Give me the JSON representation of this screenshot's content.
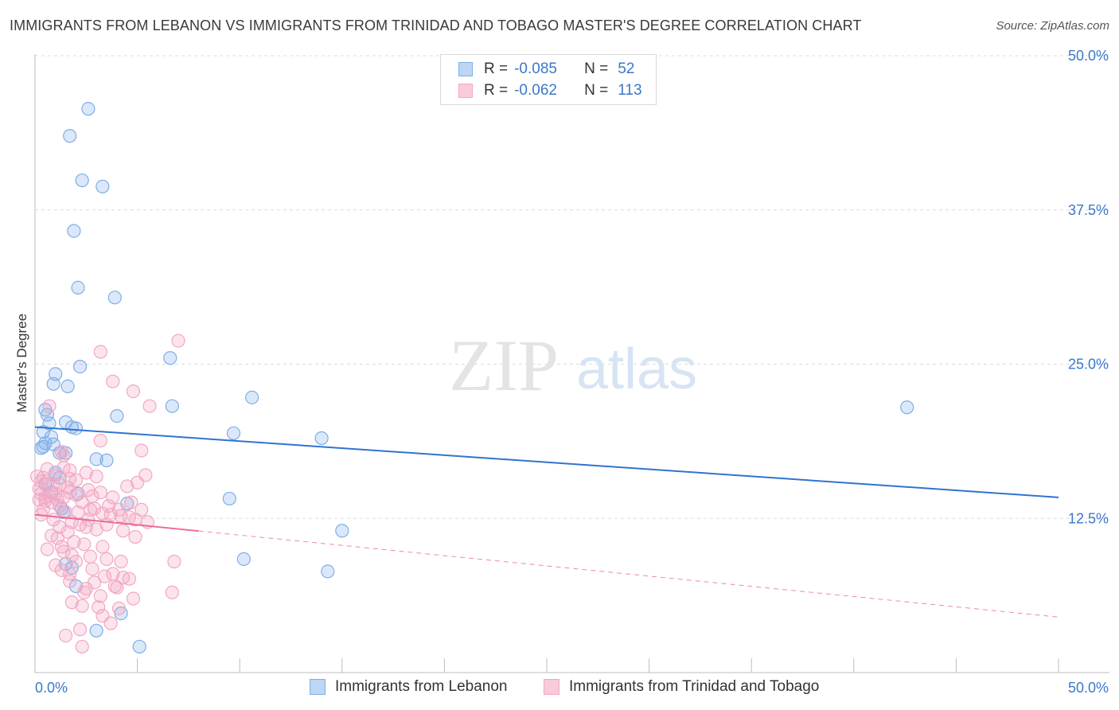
{
  "header": {
    "title": "IMMIGRANTS FROM LEBANON VS IMMIGRANTS FROM TRINIDAD AND TOBAGO MASTER'S DEGREE CORRELATION CHART",
    "source": "Source: ZipAtlas.com"
  },
  "watermark": {
    "zip": "ZIP",
    "atlas": "atlas"
  },
  "legend": {
    "rows": [
      {
        "r_label": "R =",
        "r_value": "-0.085",
        "n_label": "N =",
        "n_value": "52"
      },
      {
        "r_label": "R =",
        "r_value": "-0.062",
        "n_label": "N =",
        "n_value": "113"
      }
    ]
  },
  "chart_data": {
    "type": "scatter",
    "title": "IMMIGRANTS FROM LEBANON VS IMMIGRANTS FROM TRINIDAD AND TOBAGO MASTER'S DEGREE CORRELATION CHART",
    "xlabel": "",
    "ylabel": "Master's Degree",
    "xlim": [
      0,
      50
    ],
    "ylim": [
      0,
      50
    ],
    "x_tick_labels": [
      "0.0%",
      "50.0%"
    ],
    "y_ticks": [
      12.5,
      25.0,
      37.5,
      50.0
    ],
    "y_tick_labels": [
      "12.5%",
      "25.0%",
      "37.5%",
      "50.0%"
    ],
    "grid": true,
    "legend_position": "bottom",
    "series": [
      {
        "name": "Immigrants from Lebanon",
        "color": "#7eaee8",
        "line_color": "#2f74d0",
        "R": -0.085,
        "N": 52,
        "trend": {
          "x": [
            0,
            50
          ],
          "y": [
            19.9,
            14.2
          ],
          "dashed_from": null
        },
        "points": [
          [
            2.6,
            45.7
          ],
          [
            1.7,
            43.5
          ],
          [
            2.3,
            39.9
          ],
          [
            3.3,
            39.4
          ],
          [
            1.9,
            35.8
          ],
          [
            2.1,
            31.2
          ],
          [
            3.9,
            30.4
          ],
          [
            6.6,
            25.5
          ],
          [
            2.2,
            24.8
          ],
          [
            1.0,
            24.2
          ],
          [
            0.9,
            23.4
          ],
          [
            1.6,
            23.2
          ],
          [
            10.6,
            22.3
          ],
          [
            6.7,
            21.6
          ],
          [
            42.6,
            21.5
          ],
          [
            0.5,
            21.3
          ],
          [
            0.6,
            20.9
          ],
          [
            4.0,
            20.8
          ],
          [
            1.5,
            20.3
          ],
          [
            0.7,
            20.2
          ],
          [
            1.8,
            19.9
          ],
          [
            2.0,
            19.8
          ],
          [
            0.4,
            19.5
          ],
          [
            9.7,
            19.4
          ],
          [
            14.0,
            19.0
          ],
          [
            0.8,
            19.1
          ],
          [
            0.5,
            18.6
          ],
          [
            0.9,
            18.5
          ],
          [
            0.3,
            18.2
          ],
          [
            1.2,
            17.8
          ],
          [
            1.5,
            17.8
          ],
          [
            3.0,
            17.3
          ],
          [
            3.5,
            17.2
          ],
          [
            1.0,
            16.2
          ],
          [
            1.2,
            15.8
          ],
          [
            0.5,
            15.3
          ],
          [
            0.8,
            14.6
          ],
          [
            2.1,
            14.5
          ],
          [
            1.3,
            13.3
          ],
          [
            9.5,
            14.1
          ],
          [
            4.5,
            13.7
          ],
          [
            15.0,
            11.5
          ],
          [
            10.2,
            9.2
          ],
          [
            14.3,
            8.2
          ],
          [
            1.5,
            8.8
          ],
          [
            1.8,
            8.5
          ],
          [
            2.0,
            7.0
          ],
          [
            4.2,
            4.8
          ],
          [
            3.0,
            3.4
          ],
          [
            5.1,
            2.1
          ],
          [
            0.4,
            18.3
          ],
          [
            1.4,
            13.0
          ]
        ]
      },
      {
        "name": "Immigrants from Trinidad and Tobago",
        "color": "#f3a7c2",
        "line_color": "#ec6a96",
        "R": -0.062,
        "N": 113,
        "trend": {
          "x": [
            0,
            50
          ],
          "y": [
            12.8,
            4.5
          ],
          "dashed_from": 8.0
        },
        "points": [
          [
            7.0,
            26.9
          ],
          [
            3.2,
            26.0
          ],
          [
            3.8,
            23.6
          ],
          [
            4.8,
            22.8
          ],
          [
            5.6,
            21.6
          ],
          [
            0.7,
            21.6
          ],
          [
            3.2,
            18.8
          ],
          [
            5.2,
            18.0
          ],
          [
            1.3,
            17.9
          ],
          [
            1.4,
            17.6
          ],
          [
            1.4,
            16.6
          ],
          [
            1.7,
            16.4
          ],
          [
            2.5,
            16.2
          ],
          [
            0.1,
            15.9
          ],
          [
            0.3,
            15.5
          ],
          [
            0.6,
            15.3
          ],
          [
            0.9,
            15.2
          ],
          [
            1.2,
            15.2
          ],
          [
            1.7,
            15.7
          ],
          [
            5.4,
            16.0
          ],
          [
            3.0,
            15.9
          ],
          [
            0.2,
            14.9
          ],
          [
            0.3,
            14.5
          ],
          [
            0.7,
            14.3
          ],
          [
            1.0,
            14.5
          ],
          [
            1.4,
            14.2
          ],
          [
            1.7,
            14.6
          ],
          [
            2.0,
            14.4
          ],
          [
            2.3,
            13.8
          ],
          [
            2.8,
            14.3
          ],
          [
            0.8,
            13.8
          ],
          [
            1.2,
            13.5
          ],
          [
            0.5,
            13.9
          ],
          [
            2.7,
            13.2
          ],
          [
            3.3,
            12.9
          ],
          [
            3.7,
            12.8
          ],
          [
            4.2,
            12.7
          ],
          [
            4.6,
            12.6
          ],
          [
            4.9,
            12.4
          ],
          [
            1.8,
            12.2
          ],
          [
            2.2,
            12.0
          ],
          [
            2.5,
            11.8
          ],
          [
            3.0,
            11.6
          ],
          [
            1.6,
            11.4
          ],
          [
            0.8,
            11.1
          ],
          [
            1.1,
            10.9
          ],
          [
            1.9,
            10.6
          ],
          [
            2.4,
            10.4
          ],
          [
            3.3,
            10.2
          ],
          [
            0.6,
            10.0
          ],
          [
            1.4,
            9.8
          ],
          [
            1.8,
            9.5
          ],
          [
            2.7,
            9.4
          ],
          [
            3.5,
            9.2
          ],
          [
            4.2,
            9.0
          ],
          [
            6.8,
            9.0
          ],
          [
            1.0,
            8.7
          ],
          [
            1.3,
            8.3
          ],
          [
            1.7,
            8.0
          ],
          [
            3.8,
            8.0
          ],
          [
            4.3,
            7.7
          ],
          [
            4.6,
            7.6
          ],
          [
            2.9,
            7.3
          ],
          [
            3.9,
            7.0
          ],
          [
            2.4,
            6.5
          ],
          [
            3.2,
            6.2
          ],
          [
            6.7,
            6.5
          ],
          [
            1.8,
            5.7
          ],
          [
            2.3,
            5.4
          ],
          [
            3.1,
            5.3
          ],
          [
            4.1,
            5.2
          ],
          [
            3.3,
            4.6
          ],
          [
            3.7,
            4.0
          ],
          [
            2.2,
            3.5
          ],
          [
            1.5,
            3.0
          ],
          [
            2.3,
            2.1
          ],
          [
            0.2,
            14.0
          ],
          [
            0.4,
            15.8
          ],
          [
            0.5,
            14.2
          ],
          [
            1.1,
            14.0
          ],
          [
            1.5,
            13.0
          ],
          [
            2.1,
            13.0
          ],
          [
            2.9,
            13.3
          ],
          [
            3.6,
            13.5
          ],
          [
            4.1,
            13.2
          ],
          [
            4.5,
            15.1
          ],
          [
            5.0,
            15.4
          ],
          [
            2.6,
            12.4
          ],
          [
            3.5,
            12.0
          ],
          [
            4.3,
            11.5
          ],
          [
            4.9,
            11.0
          ],
          [
            5.5,
            12.2
          ],
          [
            1.2,
            11.8
          ],
          [
            0.9,
            12.4
          ],
          [
            0.4,
            13.2
          ],
          [
            0.6,
            16.5
          ],
          [
            1.0,
            16.0
          ],
          [
            1.6,
            15.0
          ],
          [
            2.0,
            15.6
          ],
          [
            2.6,
            14.8
          ],
          [
            3.2,
            14.6
          ],
          [
            3.8,
            14.2
          ],
          [
            4.7,
            13.8
          ],
          [
            5.2,
            13.2
          ],
          [
            1.3,
            10.2
          ],
          [
            2.0,
            9.0
          ],
          [
            2.8,
            8.4
          ],
          [
            3.4,
            7.8
          ],
          [
            4.0,
            6.9
          ],
          [
            4.8,
            6.0
          ],
          [
            1.7,
            7.4
          ],
          [
            2.5,
            6.8
          ],
          [
            0.3,
            12.8
          ]
        ]
      }
    ]
  }
}
